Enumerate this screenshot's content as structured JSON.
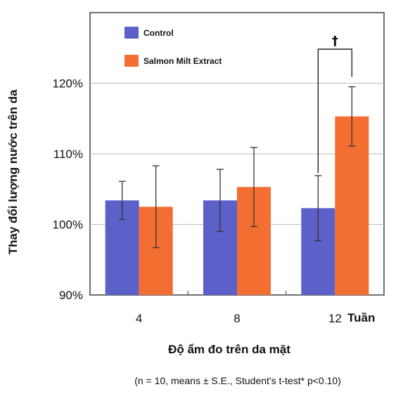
{
  "chart_data": {
    "type": "bar",
    "categories": [
      "4",
      "8",
      "12"
    ],
    "category_unit": "Tuần",
    "series": [
      {
        "name": "Control",
        "color": "#5b61c8",
        "values": [
          103.4,
          103.4,
          102.3
        ],
        "error": [
          2.7,
          4.4,
          4.6
        ]
      },
      {
        "name": "Salmon Milt Extract",
        "color": "#f26f31",
        "values": [
          102.5,
          105.3,
          115.3
        ],
        "error": [
          5.8,
          5.6,
          4.2
        ]
      }
    ],
    "ylabel": "Thay đổi lượng nước trên da",
    "xlabel": "Độ ẩm đo trên da mặt",
    "ylim": [
      90,
      130
    ],
    "yticks": [
      "90%",
      "100%",
      "110%",
      "120%"
    ],
    "ytick_values": [
      90,
      100,
      110,
      120
    ],
    "significance": {
      "symbol": "†",
      "category": "12"
    },
    "footnote": "(n = 10, means ± S.E., Student's t-test* p<0.10)",
    "grid": true,
    "legend_position": "top-left"
  }
}
